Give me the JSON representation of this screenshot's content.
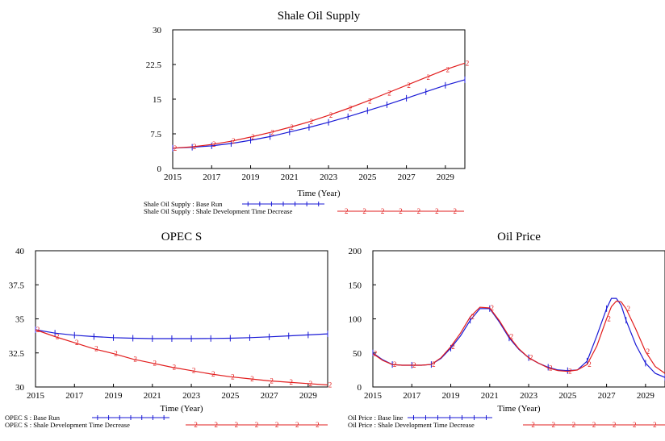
{
  "colors": {
    "base": "#1a1ad6",
    "scenario": "#e21c1c",
    "frame": "#000000"
  },
  "chart_data": [
    {
      "type": "line",
      "title": "Shale Oil Supply",
      "xlabel": "Time (Year)",
      "ylabel": "",
      "xlim": [
        2015,
        2030
      ],
      "ylim": [
        0,
        30
      ],
      "x_ticks": [
        "2015",
        "2017",
        "2019",
        "2021",
        "2023",
        "2025",
        "2027",
        "2029"
      ],
      "y_ticks": [
        "0",
        "7.5",
        "15",
        "22.5",
        "30"
      ],
      "legend": [
        {
          "label": "Shale Oil Supply : Base Run",
          "marker": "1"
        },
        {
          "label": "Shale Oil Supply : Shale Development Time Decrease",
          "marker": "2"
        }
      ],
      "series": [
        {
          "name": "Shale Oil Supply : Base Run",
          "marker": "1",
          "x": [
            2015,
            2016,
            2017,
            2018,
            2019,
            2020,
            2021,
            2022,
            2023,
            2024,
            2025,
            2026,
            2027,
            2028,
            2029,
            2030
          ],
          "values": [
            4.4,
            4.6,
            4.9,
            5.4,
            6.1,
            6.9,
            7.9,
            8.9,
            10.0,
            11.2,
            12.5,
            13.8,
            15.2,
            16.6,
            18.0,
            19.2
          ]
        },
        {
          "name": "Shale Oil Supply : Shale Development Time Decrease",
          "marker": "2",
          "x": [
            2015,
            2016,
            2017,
            2018,
            2019,
            2020,
            2021,
            2022,
            2023,
            2024,
            2025,
            2026,
            2027,
            2028,
            2029,
            2030
          ],
          "values": [
            4.4,
            4.7,
            5.2,
            5.9,
            6.8,
            7.8,
            8.9,
            10.1,
            11.5,
            13.0,
            14.6,
            16.3,
            18.0,
            19.7,
            21.4,
            22.8
          ]
        }
      ]
    },
    {
      "type": "line",
      "title": "OPEC S",
      "xlabel": "Time (Year)",
      "ylabel": "",
      "xlim": [
        2015,
        2030
      ],
      "ylim": [
        30,
        40
      ],
      "x_ticks": [
        "2015",
        "2017",
        "2019",
        "2021",
        "2023",
        "2025",
        "2027",
        "2029"
      ],
      "y_ticks": [
        "30",
        "32.5",
        "35",
        "37.5",
        "40"
      ],
      "legend": [
        {
          "label": "OPEC S : Base Run",
          "marker": "1"
        },
        {
          "label": "OPEC S : Shale Development Time Decrease",
          "marker": "2"
        }
      ],
      "series": [
        {
          "name": "OPEC S : Base Run",
          "marker": "1",
          "x": [
            2015,
            2016,
            2017,
            2018,
            2019,
            2020,
            2021,
            2022,
            2023,
            2024,
            2025,
            2026,
            2027,
            2028,
            2029,
            2030
          ],
          "values": [
            34.2,
            33.95,
            33.8,
            33.7,
            33.62,
            33.58,
            33.55,
            33.55,
            33.55,
            33.56,
            33.58,
            33.62,
            33.68,
            33.75,
            33.82,
            33.9
          ]
        },
        {
          "name": "OPEC S : Shale Development Time Decrease",
          "marker": "2",
          "x": [
            2015,
            2016,
            2017,
            2018,
            2019,
            2020,
            2021,
            2022,
            2023,
            2024,
            2025,
            2026,
            2027,
            2028,
            2029,
            2030
          ],
          "values": [
            34.2,
            33.7,
            33.25,
            32.8,
            32.45,
            32.05,
            31.75,
            31.45,
            31.2,
            30.95,
            30.75,
            30.6,
            30.45,
            30.35,
            30.25,
            30.15
          ]
        }
      ]
    },
    {
      "type": "line",
      "title": "Oil Price",
      "xlabel": "Time (Year)",
      "ylabel": "",
      "xlim": [
        2015,
        2030
      ],
      "ylim": [
        0,
        200
      ],
      "x_ticks": [
        "2015",
        "2017",
        "2019",
        "2021",
        "2023",
        "2025",
        "2027",
        "2029"
      ],
      "y_ticks": [
        "0",
        "50",
        "100",
        "150",
        "200"
      ],
      "legend": [
        {
          "label": "Oil Price : Base line",
          "marker": "1"
        },
        {
          "label": "Oil Price : Shale Development Time Decrease",
          "marker": "2"
        }
      ],
      "series": [
        {
          "name": "Oil Price : Base line",
          "marker": "1",
          "x": [
            2015,
            2015.5,
            2016,
            2016.5,
            2017,
            2017.5,
            2018,
            2018.5,
            2019,
            2019.5,
            2020,
            2020.5,
            2021,
            2021.5,
            2022,
            2022.5,
            2023,
            2023.5,
            2024,
            2024.5,
            2025,
            2025.5,
            2026,
            2026.5,
            2027,
            2027.25,
            2027.5,
            2027.75,
            2028,
            2028.5,
            2029,
            2029.5,
            2030
          ],
          "values": [
            50,
            40,
            33,
            32,
            32,
            32,
            33,
            42,
            57,
            75,
            98,
            115,
            115,
            95,
            72,
            55,
            43,
            35,
            29,
            25,
            24,
            25,
            38,
            75,
            115,
            130,
            130,
            120,
            98,
            62,
            35,
            20,
            14
          ]
        },
        {
          "name": "Oil Price : Shale Development Time Decrease",
          "marker": "2",
          "x": [
            2015,
            2015.5,
            2016,
            2016.5,
            2017,
            2017.5,
            2018,
            2018.5,
            2019,
            2019.5,
            2020,
            2020.5,
            2021,
            2021.5,
            2022,
            2022.5,
            2023,
            2023.5,
            2024,
            2024.5,
            2025,
            2025.5,
            2026,
            2026.5,
            2027,
            2027.25,
            2027.5,
            2027.75,
            2028,
            2028.5,
            2029,
            2029.5,
            2030
          ],
          "values": [
            49,
            39,
            33,
            32,
            32,
            32,
            33,
            43,
            59,
            79,
            103,
            117,
            116,
            97,
            74,
            56,
            43,
            35,
            28,
            24,
            23,
            25,
            33,
            60,
            100,
            118,
            126,
            125,
            115,
            85,
            52,
            30,
            20
          ]
        }
      ]
    }
  ]
}
